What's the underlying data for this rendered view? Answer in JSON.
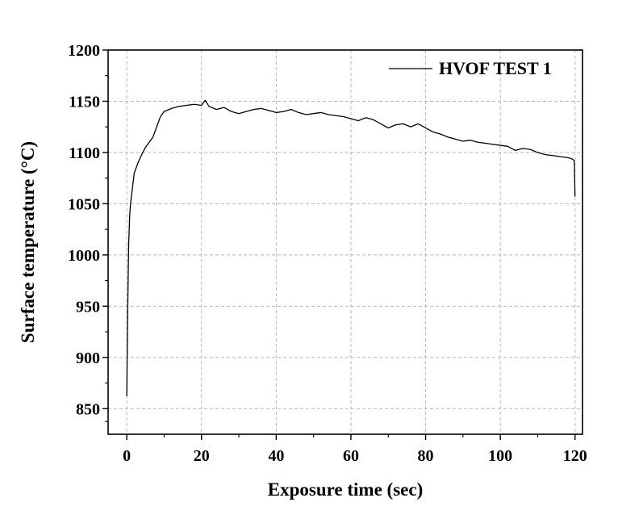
{
  "chart_data": {
    "type": "line",
    "title": "",
    "xlabel": "Exposure time (sec)",
    "ylabel": "Surface temperature (°C)",
    "xlim": [
      -5,
      122
    ],
    "ylim": [
      825,
      1200
    ],
    "xticks": [
      0,
      20,
      40,
      60,
      80,
      100,
      120
    ],
    "yticks": [
      850,
      900,
      950,
      1000,
      1050,
      1100,
      1150,
      1200
    ],
    "grid": true,
    "legend_position": "top-right",
    "series": [
      {
        "name": "HVOF TEST 1",
        "color": "#000000",
        "x": [
          0,
          0.1,
          0.3,
          0.5,
          0.8,
          1.0,
          1.5,
          2,
          3,
          4,
          5,
          6,
          7,
          8,
          9,
          10,
          12,
          14,
          16,
          18,
          20,
          21,
          22,
          24,
          26,
          28,
          30,
          32,
          34,
          36,
          38,
          40,
          42,
          44,
          46,
          48,
          50,
          52,
          54,
          56,
          58,
          60,
          62,
          64,
          66,
          68,
          70,
          72,
          74,
          76,
          78,
          80,
          82,
          84,
          86,
          88,
          90,
          92,
          94,
          96,
          98,
          100,
          102,
          104,
          106,
          108,
          110,
          112,
          114,
          116,
          118,
          119,
          119.5,
          119.8,
          120
        ],
        "y": [
          862,
          900,
          960,
          1010,
          1040,
          1050,
          1065,
          1080,
          1090,
          1098,
          1105,
          1110,
          1115,
          1125,
          1135,
          1140,
          1143,
          1145,
          1146,
          1147,
          1146,
          1151,
          1145,
          1142,
          1144,
          1140,
          1138,
          1140,
          1142,
          1143,
          1141,
          1139,
          1140,
          1142,
          1139,
          1137,
          1138,
          1139,
          1137,
          1136,
          1135,
          1133,
          1131,
          1134,
          1132,
          1128,
          1124,
          1127,
          1128,
          1125,
          1128,
          1124,
          1120,
          1118,
          1115,
          1113,
          1111,
          1112,
          1110,
          1109,
          1108,
          1107,
          1106,
          1102,
          1104,
          1103,
          1100,
          1098,
          1097,
          1096,
          1095,
          1094,
          1093,
          1092,
          1057
        ]
      }
    ]
  }
}
